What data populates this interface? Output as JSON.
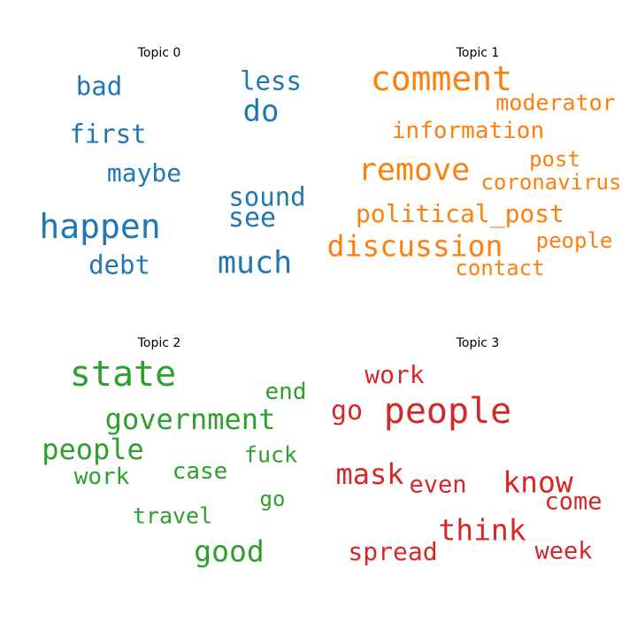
{
  "chart_data": [
    {
      "type": "wordcloud",
      "title": "Topic 0",
      "color": "#1f77b4",
      "words": [
        {
          "text": "happen",
          "weight": 38
        },
        {
          "text": "much",
          "weight": 35
        },
        {
          "text": "do",
          "weight": 34
        },
        {
          "text": "see",
          "weight": 30
        },
        {
          "text": "sound",
          "weight": 29
        },
        {
          "text": "debt",
          "weight": 29
        },
        {
          "text": "bad",
          "weight": 29
        },
        {
          "text": "less",
          "weight": 29
        },
        {
          "text": "first",
          "weight": 29
        },
        {
          "text": "maybe",
          "weight": 28
        }
      ]
    },
    {
      "type": "wordcloud",
      "title": "Topic 1",
      "color": "#ff7f0e",
      "words": [
        {
          "text": "comment",
          "weight": 38
        },
        {
          "text": "remove",
          "weight": 35
        },
        {
          "text": "discussion",
          "weight": 33
        },
        {
          "text": "political_post",
          "weight": 28
        },
        {
          "text": "information",
          "weight": 26
        },
        {
          "text": "moderator",
          "weight": 25
        },
        {
          "text": "contact",
          "weight": 24
        },
        {
          "text": "post",
          "weight": 24
        },
        {
          "text": "people",
          "weight": 24
        },
        {
          "text": "coronavirus",
          "weight": 24
        }
      ]
    },
    {
      "type": "wordcloud",
      "title": "Topic 2",
      "color": "#2ca02c",
      "words": [
        {
          "text": "state",
          "weight": 40
        },
        {
          "text": "government",
          "weight": 32
        },
        {
          "text": "people",
          "weight": 32
        },
        {
          "text": "good",
          "weight": 33
        },
        {
          "text": "case",
          "weight": 26
        },
        {
          "text": "work",
          "weight": 26
        },
        {
          "text": "end",
          "weight": 26
        },
        {
          "text": "fuck",
          "weight": 25
        },
        {
          "text": "travel",
          "weight": 25
        },
        {
          "text": "go",
          "weight": 24
        }
      ]
    },
    {
      "type": "wordcloud",
      "title": "Topic 3",
      "color": "#d62728",
      "words": [
        {
          "text": "people",
          "weight": 40
        },
        {
          "text": "know",
          "weight": 33
        },
        {
          "text": "think",
          "weight": 33
        },
        {
          "text": "mask",
          "weight": 32
        },
        {
          "text": "go",
          "weight": 30
        },
        {
          "text": "work",
          "weight": 28
        },
        {
          "text": "spread",
          "weight": 28
        },
        {
          "text": "even",
          "weight": 27
        },
        {
          "text": "come",
          "weight": 27
        },
        {
          "text": "week",
          "weight": 27
        }
      ]
    }
  ]
}
